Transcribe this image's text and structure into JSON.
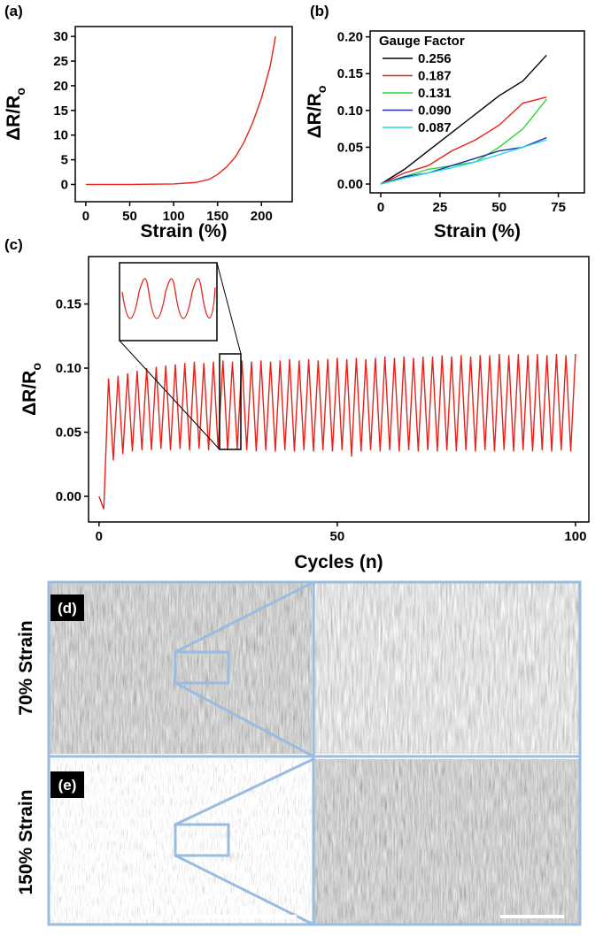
{
  "chart_data": [
    {
      "type": "line",
      "panel_label": "(a)",
      "xlabel": "Strain (%)",
      "ylabel": "ΔR/R",
      "ylabel_subscript": "o",
      "x": [
        0,
        50,
        100,
        125,
        140,
        150,
        160,
        170,
        180,
        190,
        200,
        210,
        216
      ],
      "values": [
        0,
        0,
        0.1,
        0.4,
        1,
        2,
        3.5,
        5.5,
        8.5,
        12.5,
        17.5,
        24,
        30
      ],
      "color": "#e8221b",
      "xlim": [
        -12,
        235
      ],
      "ylim": [
        -3.5,
        32
      ],
      "xticks": [
        0,
        50,
        100,
        150,
        200
      ],
      "yticks": [
        0,
        5,
        10,
        15,
        20,
        25,
        30
      ]
    },
    {
      "type": "line",
      "panel_label": "(b)",
      "xlabel": "Strain (%)",
      "ylabel": "ΔR/R",
      "ylabel_subscript": "o",
      "legend_title": "Gauge Factor",
      "legend": "upper left",
      "x": [
        0,
        10,
        20,
        30,
        40,
        50,
        60,
        70
      ],
      "series": [
        {
          "name": "0.256",
          "color": "#000000",
          "values": [
            0,
            0.02,
            0.045,
            0.07,
            0.095,
            0.12,
            0.14,
            0.175
          ]
        },
        {
          "name": "0.187",
          "color": "#e8221b",
          "values": [
            0,
            0.015,
            0.025,
            0.045,
            0.06,
            0.08,
            0.11,
            0.118
          ]
        },
        {
          "name": "0.131",
          "color": "#2ed12e",
          "values": [
            0,
            0.01,
            0.02,
            0.025,
            0.03,
            0.05,
            0.075,
            0.115
          ]
        },
        {
          "name": "0.090",
          "color": "#1a2fb0",
          "values": [
            0,
            0.01,
            0.015,
            0.025,
            0.035,
            0.045,
            0.05,
            0.063
          ]
        },
        {
          "name": "0.087",
          "color": "#29d9e6",
          "values": [
            0,
            0.008,
            0.015,
            0.022,
            0.03,
            0.04,
            0.05,
            0.06
          ]
        }
      ],
      "xlim": [
        -4.5,
        86
      ],
      "ylim": [
        -0.012,
        0.208
      ],
      "xticks": [
        0,
        25,
        50,
        75
      ],
      "yticks": [
        {
          "value": 0,
          "label": "0.00"
        },
        {
          "value": 0.05,
          "label": "0.05"
        },
        {
          "value": 0.1,
          "label": "0.10"
        },
        {
          "value": 0.15,
          "label": "0.15"
        },
        {
          "value": 0.2,
          "label": "0.20"
        }
      ]
    },
    {
      "type": "line",
      "panel_label": "(c)",
      "xlabel": "Cycles (n)",
      "ylabel": "ΔR/R",
      "ylabel_subscript": "o",
      "x": [
        0,
        1,
        2,
        3,
        4,
        5,
        6,
        7,
        8,
        9,
        10,
        11,
        12,
        13,
        14,
        15,
        16,
        17,
        18,
        19,
        20,
        21,
        22,
        23,
        24,
        25,
        26,
        27,
        28,
        29,
        30,
        31,
        32,
        33,
        34,
        35,
        36,
        37,
        38,
        39,
        40,
        41,
        42,
        43,
        44,
        45,
        46,
        47,
        48,
        49,
        50,
        51,
        52,
        53,
        54,
        55,
        56,
        57,
        58,
        59,
        60,
        61,
        62,
        63,
        64,
        65,
        66,
        67,
        68,
        69,
        70,
        71,
        72,
        73,
        74,
        75,
        76,
        77,
        78,
        79,
        80,
        81,
        82,
        83,
        84,
        85,
        86,
        87,
        88,
        89,
        90,
        91,
        92,
        93,
        94,
        95,
        96,
        97,
        98,
        99,
        100
      ],
      "values": [
        0,
        -0.01,
        0.092,
        0.028,
        0.094,
        0.033,
        0.096,
        0.035,
        0.098,
        0.036,
        0.1,
        0.036,
        0.101,
        0.037,
        0.102,
        0.036,
        0.103,
        0.037,
        0.104,
        0.036,
        0.105,
        0.037,
        0.104,
        0.036,
        0.105,
        0.037,
        0.106,
        0.036,
        0.105,
        0.037,
        0.106,
        0.036,
        0.105,
        0.035,
        0.106,
        0.036,
        0.105,
        0.035,
        0.106,
        0.036,
        0.107,
        0.035,
        0.106,
        0.036,
        0.107,
        0.035,
        0.106,
        0.036,
        0.107,
        0.035,
        0.108,
        0.036,
        0.107,
        0.031,
        0.108,
        0.035,
        0.107,
        0.036,
        0.108,
        0.035,
        0.109,
        0.036,
        0.108,
        0.035,
        0.109,
        0.036,
        0.108,
        0.035,
        0.109,
        0.036,
        0.109,
        0.035,
        0.11,
        0.036,
        0.109,
        0.035,
        0.11,
        0.036,
        0.109,
        0.035,
        0.11,
        0.036,
        0.11,
        0.035,
        0.111,
        0.036,
        0.11,
        0.035,
        0.111,
        0.036,
        0.11,
        0.035,
        0.111,
        0.036,
        0.11,
        0.035,
        0.111,
        0.036,
        0.11,
        0.035,
        0.111
      ],
      "color": "#e8221b",
      "xlim": [
        -2.2,
        102.8
      ],
      "ylim": [
        -0.02,
        0.187
      ],
      "xticks": [
        0,
        50,
        100
      ],
      "yticks": [
        {
          "value": 0,
          "label": "0.00"
        },
        {
          "value": 0.05,
          "label": "0.05"
        },
        {
          "value": 0.1,
          "label": "0.10"
        },
        {
          "value": 0.15,
          "label": "0.15"
        }
      ]
    }
  ],
  "images": [
    {
      "label": "(d)",
      "caption": "70% Strain"
    },
    {
      "label": "(e)",
      "caption": "150% Strain"
    }
  ]
}
